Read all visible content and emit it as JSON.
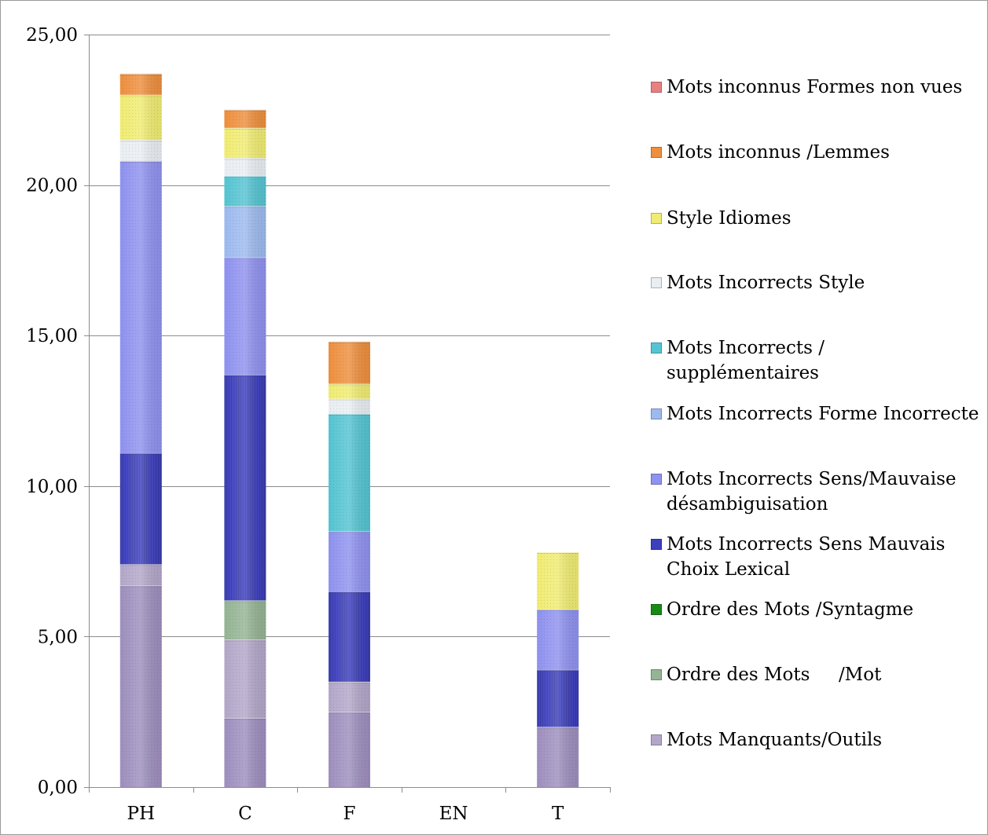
{
  "chart_data": {
    "type": "bar",
    "stacked": true,
    "categories": [
      "PH",
      "C",
      "F",
      "EN",
      "T"
    ],
    "ylim": [
      0,
      25
    ],
    "yticks": [
      "0,00",
      "5,00",
      "10,00",
      "15,00",
      "20,00",
      "25,00"
    ],
    "ytick_values": [
      0,
      5,
      10,
      15,
      20,
      25
    ],
    "grid": true,
    "legend_position": "right",
    "series": [
      {
        "name": "Mots Manquants/Outils",
        "color": "#9e8fbe",
        "values": [
          6.7,
          2.3,
          2.5,
          0,
          2.0
        ]
      },
      {
        "name": "Mots Manquants/Outils",
        "color": "#b3a7c9",
        "values": [
          0.7,
          2.6,
          1.0,
          0,
          0
        ]
      },
      {
        "name": "Ordre des Mots     /Mot",
        "color": "#95b495",
        "values": [
          0,
          1.3,
          0,
          0,
          0
        ]
      },
      {
        "name": "Ordre des Mots /Syntagme",
        "color": "#178a17",
        "values": [
          0,
          0,
          0,
          0,
          0
        ]
      },
      {
        "name": "Mots Incorrects Sens Mauvais Choix Lexical",
        "color": "#3d3fbf",
        "values": [
          3.7,
          7.5,
          3.0,
          0,
          1.9
        ]
      },
      {
        "name": "Mots Incorrects Sens/Mauvaise désambiguisation",
        "color": "#8f92ef",
        "values": [
          9.7,
          3.9,
          2.0,
          0,
          2.0
        ]
      },
      {
        "name": "Mots Incorrects Forme Incorrecte",
        "color": "#9dbaef",
        "values": [
          0,
          1.7,
          0,
          0,
          0
        ]
      },
      {
        "name": "Mots Incorrects / supplémentaires",
        "color": "#55c4d2",
        "values": [
          0,
          1.0,
          3.9,
          0,
          0
        ]
      },
      {
        "name": "Mots Incorrects Style",
        "color": "#e9eef2",
        "values": [
          0.7,
          0.6,
          0.5,
          0,
          0
        ]
      },
      {
        "name": "Style Idiomes",
        "color": "#f0ec72",
        "values": [
          1.5,
          1.0,
          0.5,
          0,
          1.9
        ]
      },
      {
        "name": "Mots inconnus /Lemmes",
        "color": "#ee8f3e",
        "values": [
          0.7,
          0.6,
          1.4,
          0,
          0
        ]
      },
      {
        "name": "Mots inconnus Formes non vues",
        "color": "#e87f80",
        "values": [
          0,
          0,
          0,
          0,
          0
        ]
      }
    ]
  },
  "legend": [
    {
      "line1": "Mots inconnus Formes non vues",
      "line2": "",
      "color": "#e87f80"
    },
    {
      "line1": "Mots inconnus /Lemmes",
      "line2": "",
      "color": "#ee8f3e"
    },
    {
      "line1": "Style Idiomes",
      "line2": "",
      "color": "#f0ec72"
    },
    {
      "line1": "Mots Incorrects Style",
      "line2": "",
      "color": "#e9eef2"
    },
    {
      "line1": "Mots Incorrects /",
      "line2": "supplémentaires",
      "color": "#55c4d2"
    },
    {
      "line1": "Mots Incorrects Forme Incorrecte",
      "line2": "",
      "color": "#9dbaef"
    },
    {
      "line1": "Mots Incorrects Sens/Mauvaise",
      "line2": "désambiguisation",
      "color": "#8f92ef"
    },
    {
      "line1": "Mots Incorrects Sens Mauvais",
      "line2": "Choix Lexical",
      "color": "#3d3fbf"
    },
    {
      "line1": "Ordre des Mots /Syntagme",
      "line2": "",
      "color": "#178a17"
    },
    {
      "line1": "Ordre des Mots     /Mot",
      "line2": "",
      "color": "#95b495"
    },
    {
      "line1": "Mots Manquants/Outils",
      "line2": "",
      "color": "#b3a7c9"
    }
  ]
}
